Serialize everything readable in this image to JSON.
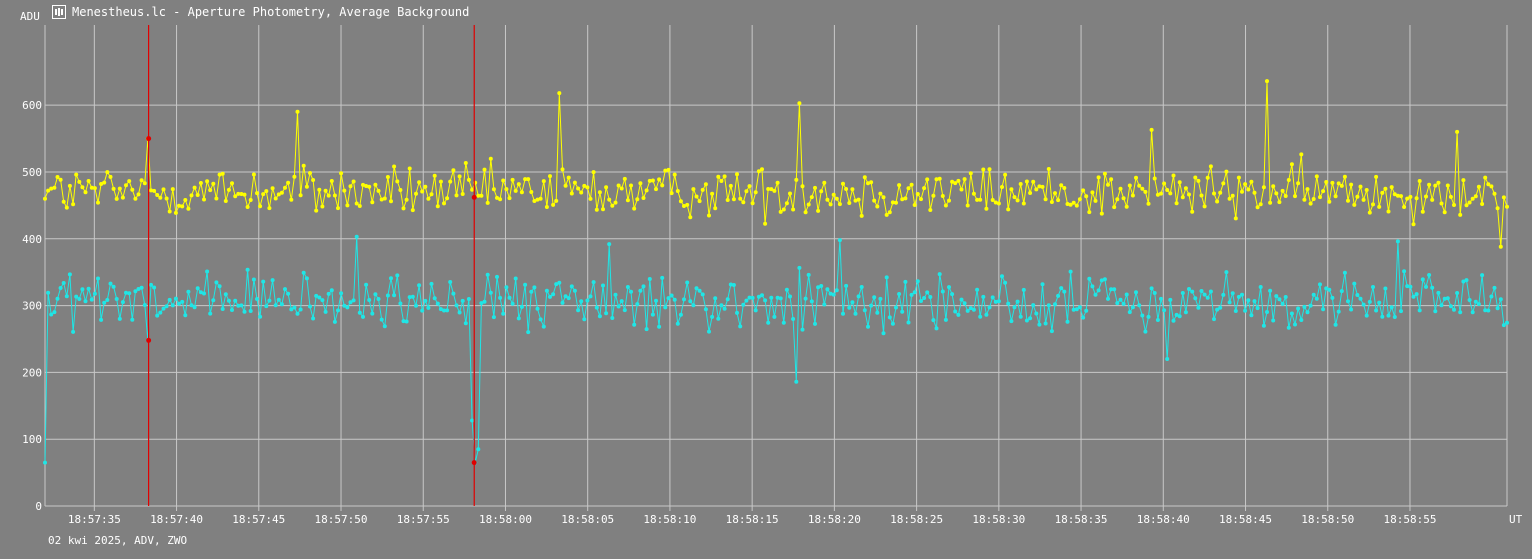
{
  "window": {
    "title": "Menestheus.lc - Aperture Photometry, Average Background",
    "app_icon": "lightcurve-app-icon"
  },
  "footer": {
    "text": "02 kwi 2025, ADV, ZWO"
  },
  "colors": {
    "background": "#808080",
    "grid": "#c8c8c8",
    "series_target": "#ffff00",
    "series_comparison": "#1fe6e6",
    "markers": "#e00000"
  },
  "chart_data": {
    "type": "line",
    "ylabel": "ADU",
    "xlabel": "UT",
    "ylim": [
      0,
      720
    ],
    "yticks": [
      0,
      100,
      200,
      300,
      400,
      500,
      600
    ],
    "x_time_start": "18:57:32.0",
    "x_time_end": "18:59:00.9",
    "xticks": [
      "18:57:35",
      "18:57:40",
      "18:57:45",
      "18:57:50",
      "18:57:55",
      "18:58:00",
      "18:58:05",
      "18:58:10",
      "18:58:15",
      "18:58:20",
      "18:58:25",
      "18:58:30",
      "18:58:35",
      "18:58:40",
      "18:58:45",
      "18:58:50",
      "18:58:55"
    ],
    "grid": true,
    "series": [
      {
        "color": "#ffff00",
        "frame_count": 470,
        "start_value": 460,
        "mean": 470,
        "noise": 35,
        "notable_points": [
          {
            "time": "18:57:38.3",
            "value": 550
          },
          {
            "time": "18:57:47.3",
            "value": 590
          },
          {
            "time": "18:58:03.3",
            "value": 618
          },
          {
            "time": "18:58:17.8",
            "value": 603
          },
          {
            "time": "18:58:39.3",
            "value": 563
          },
          {
            "time": "18:58:46.3",
            "value": 636
          },
          {
            "time": "18:58:57.8",
            "value": 560
          },
          {
            "time": "18:59:00.5",
            "value": 388
          }
        ]
      },
      {
        "color": "#1fe6e6",
        "frame_count": 470,
        "start_value": 65,
        "mean": 305,
        "noise": 38,
        "notable_points": [
          {
            "time": "18:57:38.3",
            "value": 248
          },
          {
            "time": "18:57:51.0",
            "value": 403
          },
          {
            "time": "18:57:57.9",
            "value": 128
          },
          {
            "time": "18:57:58.1",
            "value": 65
          },
          {
            "time": "18:57:58.3",
            "value": 85
          },
          {
            "time": "18:58:06.4",
            "value": 392
          },
          {
            "time": "18:58:17.7",
            "value": 186
          },
          {
            "time": "18:58:20.4",
            "value": 398
          },
          {
            "time": "18:58:40.2",
            "value": 220
          },
          {
            "time": "18:58:54.2",
            "value": 396
          }
        ]
      }
    ],
    "markers": [
      {
        "time": "18:57:38.3",
        "points": [
          550,
          248
        ]
      },
      {
        "time": "18:57:58.1",
        "points": [
          462,
          65
        ]
      }
    ]
  }
}
